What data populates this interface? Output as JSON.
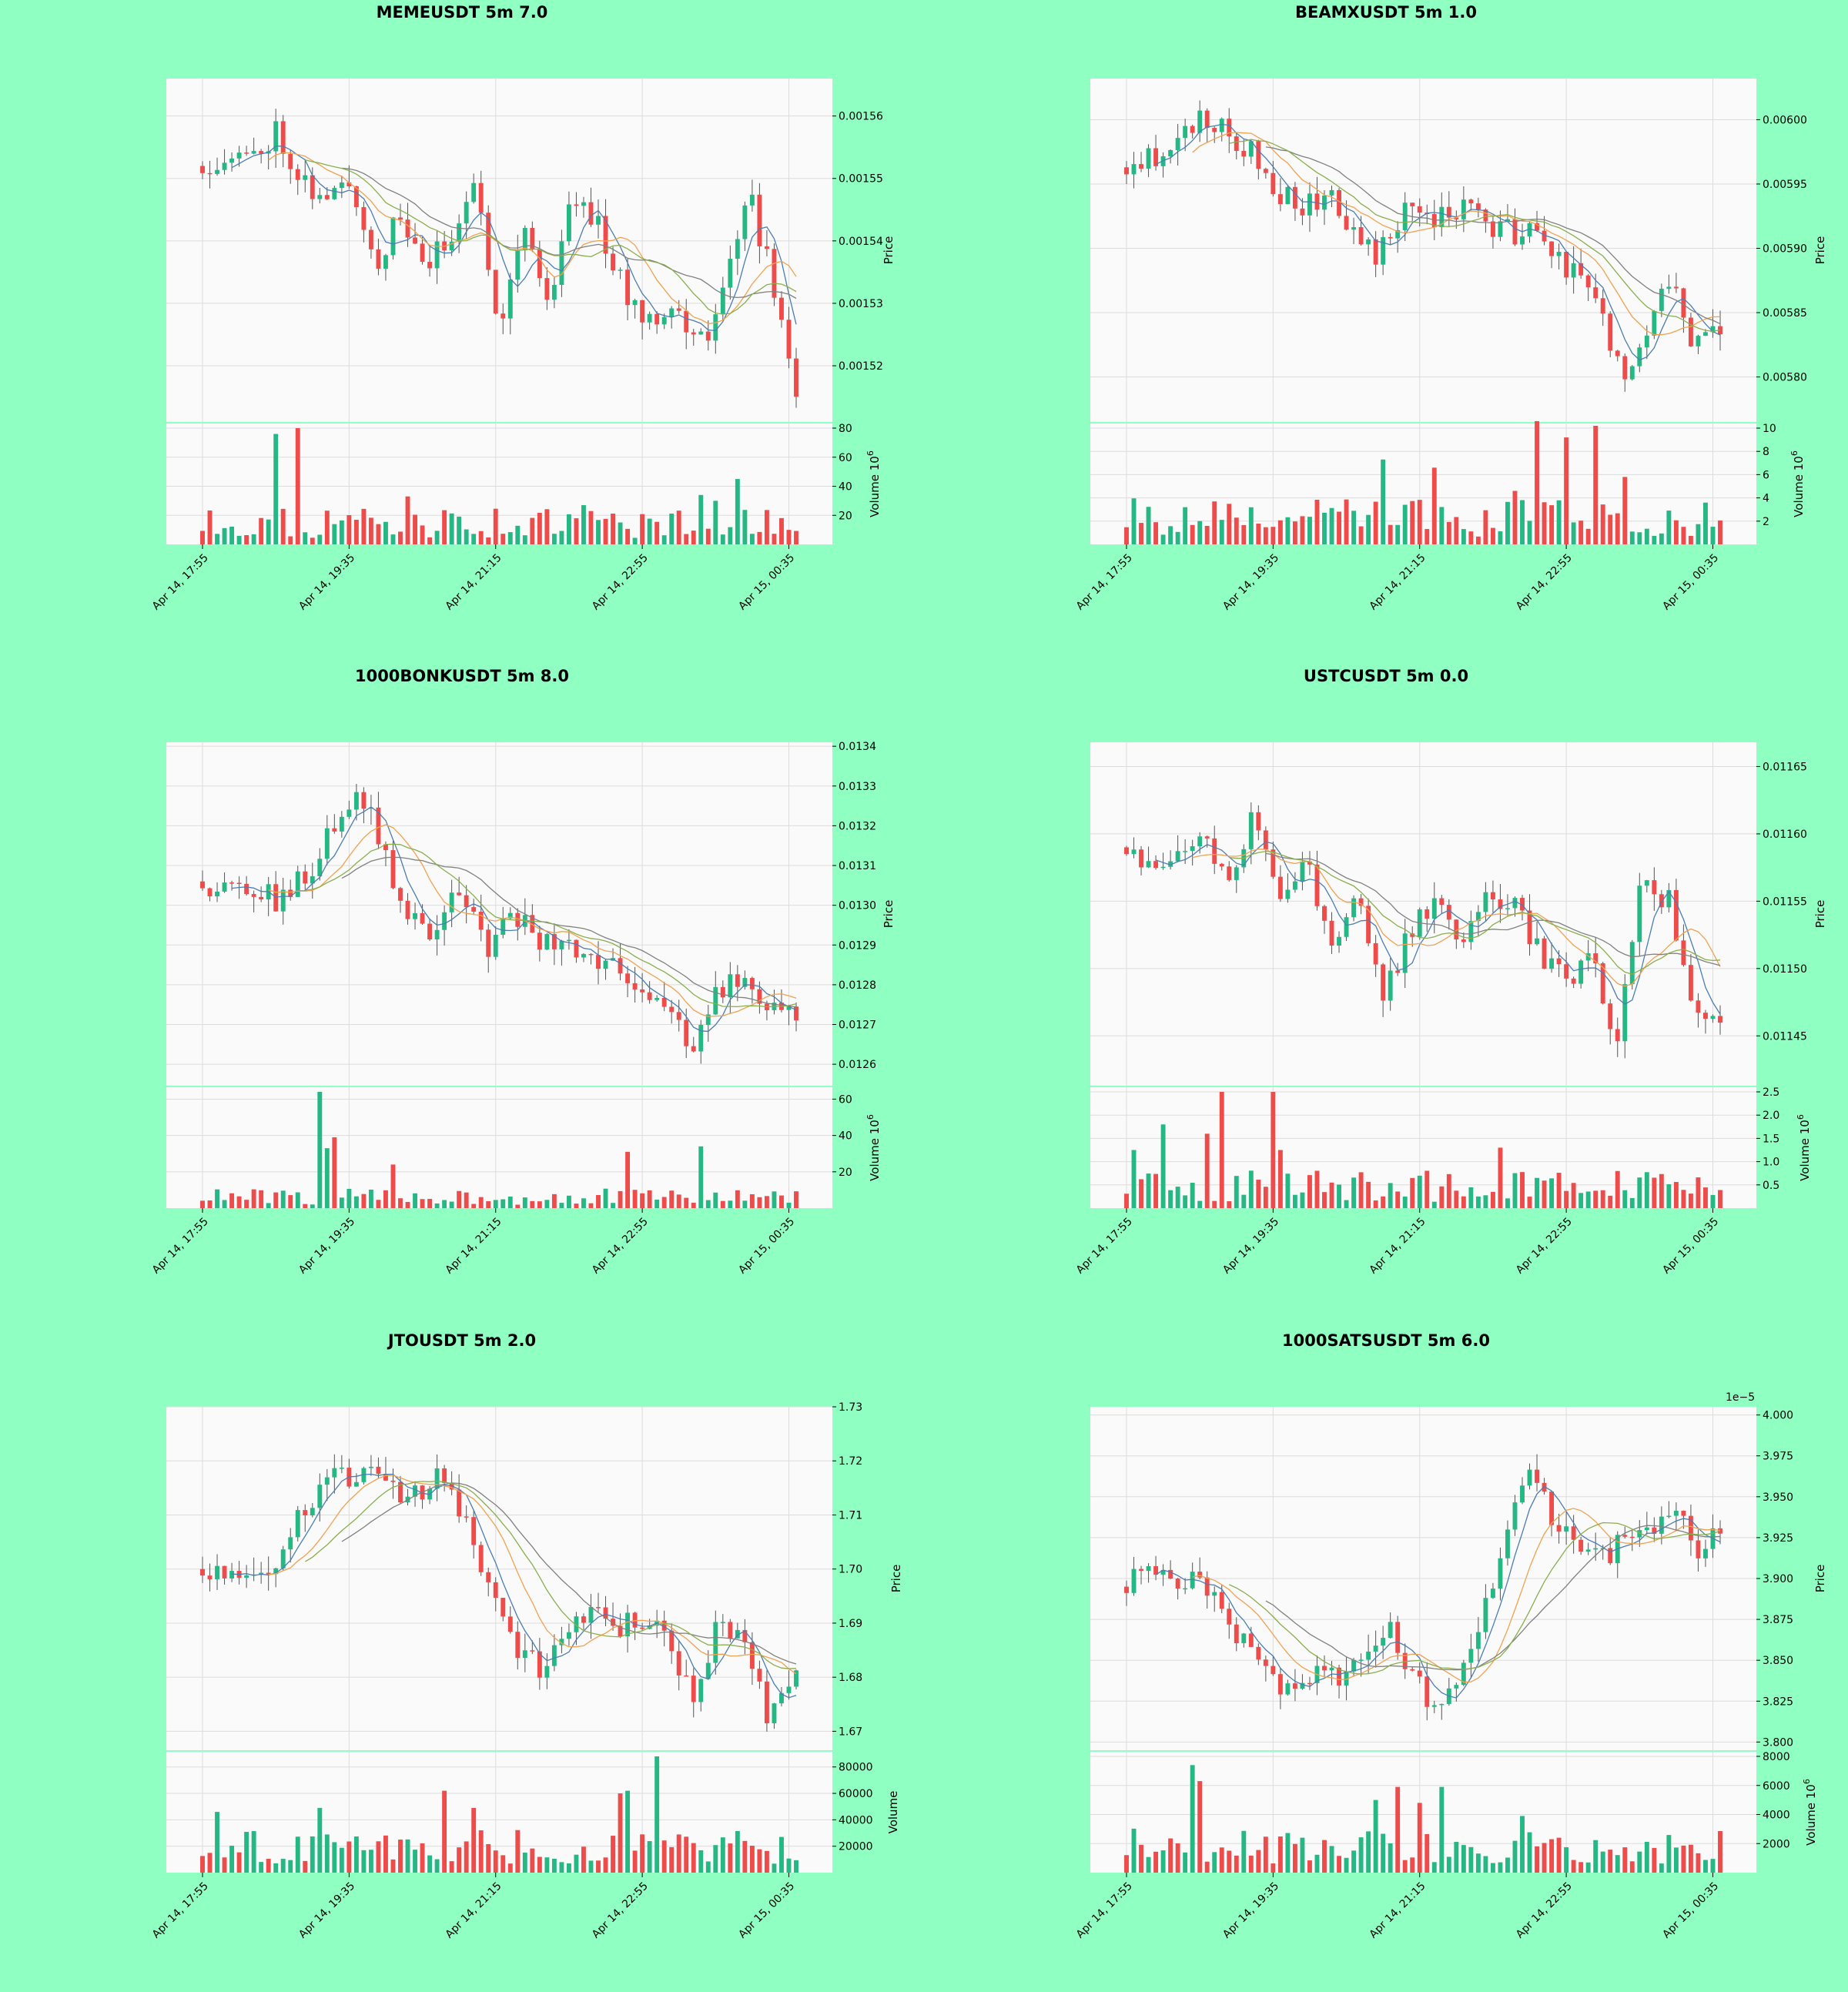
{
  "colors": {
    "background": "#8fffc2",
    "plot_bg": "#fafafa",
    "up": "#26b884",
    "down": "#ee4b4b",
    "grid": "#dcdcdc",
    "ma_blue": "#4a7db4",
    "ma_orange": "#f2a14f",
    "ma_green": "#8aae4c",
    "ma_gray": "#808080"
  },
  "x_ticks": [
    "Apr 14, 17:55",
    "Apr 14, 19:35",
    "Apr 14, 21:15",
    "Apr 14, 22:55",
    "Apr 15, 00:35"
  ],
  "price_axis_label": "Price",
  "volume_axis_label": "Volume",
  "volume_multiplier": "10",
  "volume_exponent": "6",
  "chart_data": [
    {
      "type": "candlestick",
      "title": "MEMEUSDT 5m 7.0",
      "price_range": [
        0.001511,
        0.001566
      ],
      "price_ticks": [
        "0.00152",
        "0.00153",
        "0.00154",
        "0.00155",
        "0.00156"
      ],
      "price_tick_values": [
        0.00152,
        0.00153,
        0.00154,
        0.00155,
        0.00156
      ],
      "close_path": [
        0.001552,
        0.001554,
        0.001553,
        0.001558,
        0.00155,
        0.001546,
        0.00155,
        0.001536,
        0.001544,
        0.001535,
        0.001541,
        0.001549,
        0.001527,
        0.001543,
        0.00153,
        0.001548,
        0.001543,
        0.001532,
        0.001528,
        0.00153,
        0.001523,
        0.00153,
        0.001549,
        0.001534,
        0.001516
      ],
      "volume_label": "Volume  10^6",
      "volume_range": [
        0,
        80
      ],
      "volume_ticks": [
        "20",
        "40",
        "60",
        "80"
      ],
      "volume_tick_values": [
        20,
        40,
        60,
        80
      ],
      "volume_level": 14,
      "volume_spikes": [
        [
          10,
          76
        ],
        [
          13,
          80
        ],
        [
          28,
          33
        ],
        [
          52,
          27
        ],
        [
          68,
          34
        ],
        [
          70,
          30
        ],
        [
          73,
          45
        ]
      ],
      "seed": 11
    },
    {
      "type": "candlestick",
      "title": "BEAMXUSDT 5m 1.0",
      "price_range": [
        0.005765,
        0.006032
      ],
      "price_ticks": [
        "0.00580",
        "0.00585",
        "0.00590",
        "0.00595",
        "0.00600"
      ],
      "price_tick_values": [
        0.0058,
        0.00585,
        0.0059,
        0.00595,
        0.006
      ],
      "close_path": [
        0.005963,
        0.00597,
        0.005985,
        0.006,
        0.00599,
        0.005975,
        0.00595,
        0.005925,
        0.005945,
        0.00591,
        0.005895,
        0.005925,
        0.00593,
        0.00592,
        0.005935,
        0.005915,
        0.005912,
        0.005902,
        0.00588,
        0.00586,
        0.0058,
        0.00584,
        0.00588,
        0.00582,
        0.005835
      ],
      "volume_label": "Volume  10^6",
      "volume_range": [
        0,
        10
      ],
      "volume_ticks": [
        "2",
        "4",
        "6",
        "8",
        "10"
      ],
      "volume_tick_values": [
        2,
        4,
        6,
        8,
        10
      ],
      "volume_level": 2.2,
      "volume_spikes": [
        [
          35,
          7.3
        ],
        [
          42,
          6.6
        ],
        [
          53,
          4.6
        ],
        [
          56,
          10.6
        ],
        [
          60,
          9.2
        ],
        [
          64,
          10.2
        ],
        [
          68,
          5.8
        ]
      ],
      "seed": 23
    },
    {
      "type": "candlestick",
      "title": "1000BONKUSDT 5m 8.0",
      "price_range": [
        0.012546,
        0.01341
      ],
      "price_ticks": [
        "0.0126",
        "0.0127",
        "0.0128",
        "0.0129",
        "0.0130",
        "0.0131",
        "0.0132",
        "0.0133",
        "0.0134"
      ],
      "price_tick_values": [
        0.0126,
        0.0127,
        0.0128,
        0.0129,
        0.013,
        0.0131,
        0.0132,
        0.0133,
        0.0134
      ],
      "close_path": [
        0.01306,
        0.01304,
        0.01303,
        0.01301,
        0.01307,
        0.01318,
        0.01331,
        0.01313,
        0.01296,
        0.01294,
        0.01305,
        0.01287,
        0.01299,
        0.01292,
        0.0129,
        0.01284,
        0.01285,
        0.0128,
        0.01276,
        0.01263,
        0.01278,
        0.01282,
        0.01273,
        0.01274
      ],
      "volume_label": "Volume  10^6",
      "volume_range": [
        0,
        64
      ],
      "volume_ticks": [
        "20",
        "40",
        "60"
      ],
      "volume_tick_values": [
        20,
        40,
        60
      ],
      "volume_level": 6,
      "volume_spikes": [
        [
          16,
          64
        ],
        [
          17,
          33
        ],
        [
          18,
          39
        ],
        [
          26,
          24
        ],
        [
          58,
          31
        ],
        [
          68,
          34
        ]
      ],
      "seed": 37
    },
    {
      "type": "candlestick",
      "title": "USTCUSDT 5m 0.0",
      "price_range": [
        0.011413,
        0.011668
      ],
      "price_ticks": [
        "0.01145",
        "0.01150",
        "0.01155",
        "0.01160",
        "0.01165"
      ],
      "price_tick_values": [
        0.01145,
        0.0115,
        0.01155,
        0.0116,
        0.01165
      ],
      "close_path": [
        0.01159,
        0.011575,
        0.01159,
        0.0116,
        0.01157,
        0.01162,
        0.011545,
        0.011575,
        0.01151,
        0.011555,
        0.01148,
        0.01153,
        0.01155,
        0.01151,
        0.01156,
        0.011545,
        0.01151,
        0.011495,
        0.011505,
        0.01144,
        0.01157,
        0.01155,
        0.01146,
        0.011465
      ],
      "volume_label": "Volume  10^6",
      "volume_range": [
        0,
        2.5
      ],
      "volume_ticks": [
        "0.5",
        "1.0",
        "1.5",
        "2.0",
        "2.5"
      ],
      "volume_tick_values": [
        0.5,
        1.0,
        1.5,
        2.0,
        2.5
      ],
      "volume_level": 0.45,
      "volume_spikes": [
        [
          1,
          1.25
        ],
        [
          5,
          1.8
        ],
        [
          11,
          1.6
        ],
        [
          13,
          2.5
        ],
        [
          20,
          2.5
        ],
        [
          21,
          1.25
        ],
        [
          51,
          1.3
        ]
      ],
      "seed": 53
    },
    {
      "type": "candlestick",
      "title": "JTOUSDT 5m 2.0",
      "price_range": [
        1.6665,
        1.73
      ],
      "price_ticks": [
        "1.67",
        "1.68",
        "1.69",
        "1.70",
        "1.71",
        "1.72",
        "1.73"
      ],
      "price_tick_values": [
        1.67,
        1.68,
        1.69,
        1.7,
        1.71,
        1.72,
        1.73
      ],
      "close_path": [
        1.7,
        1.697,
        1.699,
        1.703,
        1.711,
        1.72,
        1.716,
        1.719,
        1.712,
        1.718,
        1.711,
        1.696,
        1.687,
        1.681,
        1.69,
        1.691,
        1.69,
        1.689,
        1.688,
        1.676,
        1.69,
        1.686,
        1.672,
        1.679
      ],
      "volume_label": "Volume",
      "volume_range": [
        0,
        88000
      ],
      "volume_ticks": [
        "20000",
        "40000",
        "60000",
        "80000"
      ],
      "volume_tick_values": [
        20000,
        40000,
        60000,
        80000
      ],
      "volume_level": 18000,
      "volume_spikes": [
        [
          2,
          46000
        ],
        [
          16,
          49000
        ],
        [
          33,
          62000
        ],
        [
          37,
          49000
        ],
        [
          57,
          60000
        ],
        [
          58,
          62000
        ],
        [
          62,
          88000
        ]
      ],
      "seed": 71
    },
    {
      "type": "candlestick",
      "title": "1000SATSUSDT 5m 6.0",
      "offset_text": "1e−5",
      "price_range": [
        3.795,
        4.005
      ],
      "price_ticks": [
        "3.800",
        "3.825",
        "3.850",
        "3.875",
        "3.900",
        "3.925",
        "3.950",
        "3.975",
        "4.000"
      ],
      "price_tick_values": [
        3.8,
        3.825,
        3.85,
        3.875,
        3.9,
        3.925,
        3.95,
        3.975,
        4.0
      ],
      "close_path": [
        3.895,
        3.905,
        3.89,
        3.9,
        3.88,
        3.86,
        3.84,
        3.825,
        3.845,
        3.84,
        3.86,
        3.87,
        3.84,
        3.82,
        3.84,
        3.88,
        3.93,
        3.96,
        3.935,
        3.925,
        3.915,
        3.92,
        3.925,
        3.945,
        3.92,
        3.925
      ],
      "volume_label": "Volume  10^6",
      "volume_range": [
        0,
        8000
      ],
      "volume_ticks": [
        "2000",
        "4000",
        "6000",
        "8000"
      ],
      "volume_tick_values": [
        2000,
        4000,
        6000,
        8000
      ],
      "volume_level": 1700,
      "volume_spikes": [
        [
          9,
          7400
        ],
        [
          10,
          6300
        ],
        [
          34,
          5000
        ],
        [
          37,
          5900
        ],
        [
          40,
          4800
        ],
        [
          43,
          5900
        ],
        [
          54,
          3900
        ]
      ],
      "seed": 89
    }
  ]
}
